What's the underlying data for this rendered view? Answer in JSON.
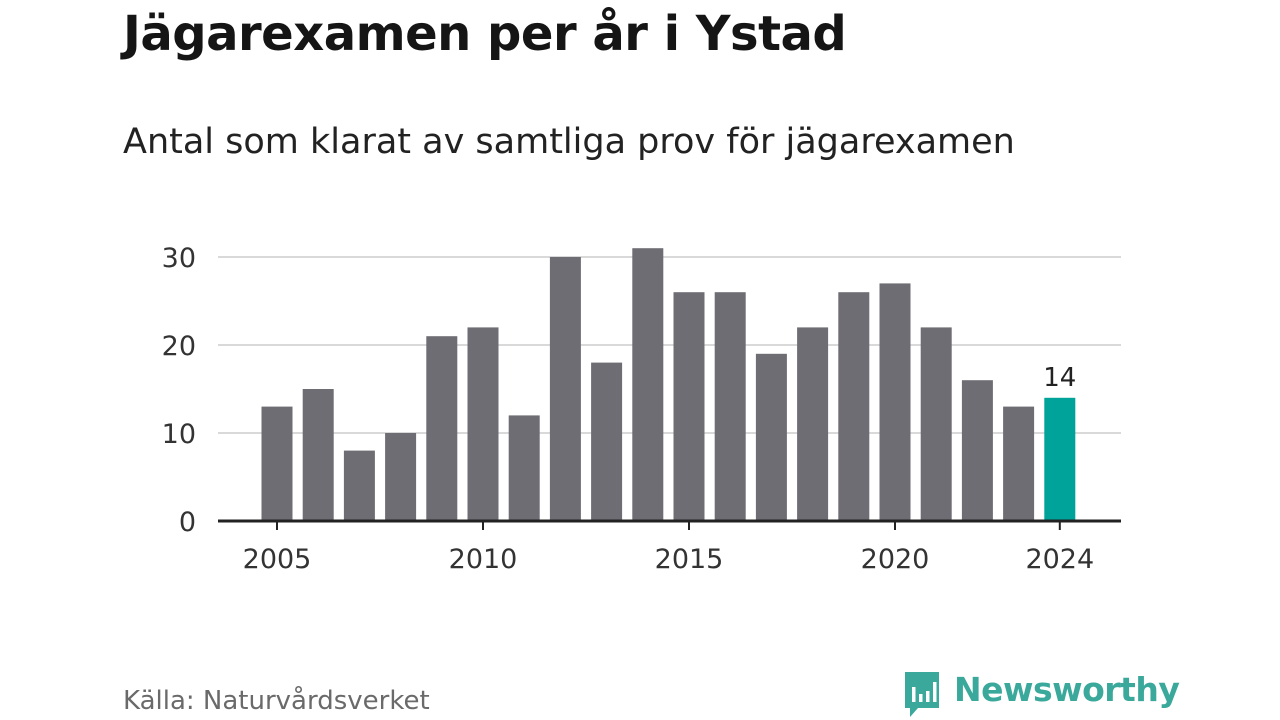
{
  "title": "Jägarexamen per år i Ystad",
  "subtitle": "Antal som klarat av samtliga prov för jägarexamen",
  "source": "Källa: Naturvårdsverket",
  "brand": {
    "name": "Newsworthy",
    "color": "#3aa89b",
    "icon": "newsworthy-logo-icon"
  },
  "colors": {
    "bar": "#6e6d73",
    "highlight": "#00a39a",
    "grid": "#d9d9d9",
    "axis": "#222222"
  },
  "chart_data": {
    "type": "bar",
    "x": [
      2005,
      2006,
      2007,
      2008,
      2009,
      2010,
      2011,
      2012,
      2013,
      2014,
      2015,
      2016,
      2017,
      2018,
      2019,
      2020,
      2021,
      2022,
      2023,
      2024
    ],
    "values": [
      13,
      15,
      8,
      10,
      21,
      22,
      12,
      30,
      18,
      31,
      26,
      26,
      19,
      22,
      26,
      27,
      22,
      16,
      13,
      14
    ],
    "xticks": [
      "2005",
      "2010",
      "2015",
      "2020",
      "2024"
    ],
    "yticks": [
      "0",
      "10",
      "20",
      "30"
    ],
    "ylim": [
      0,
      30
    ],
    "highlight": {
      "x": 2024,
      "label": "14"
    },
    "grid": "horizontal",
    "legend": "none"
  }
}
